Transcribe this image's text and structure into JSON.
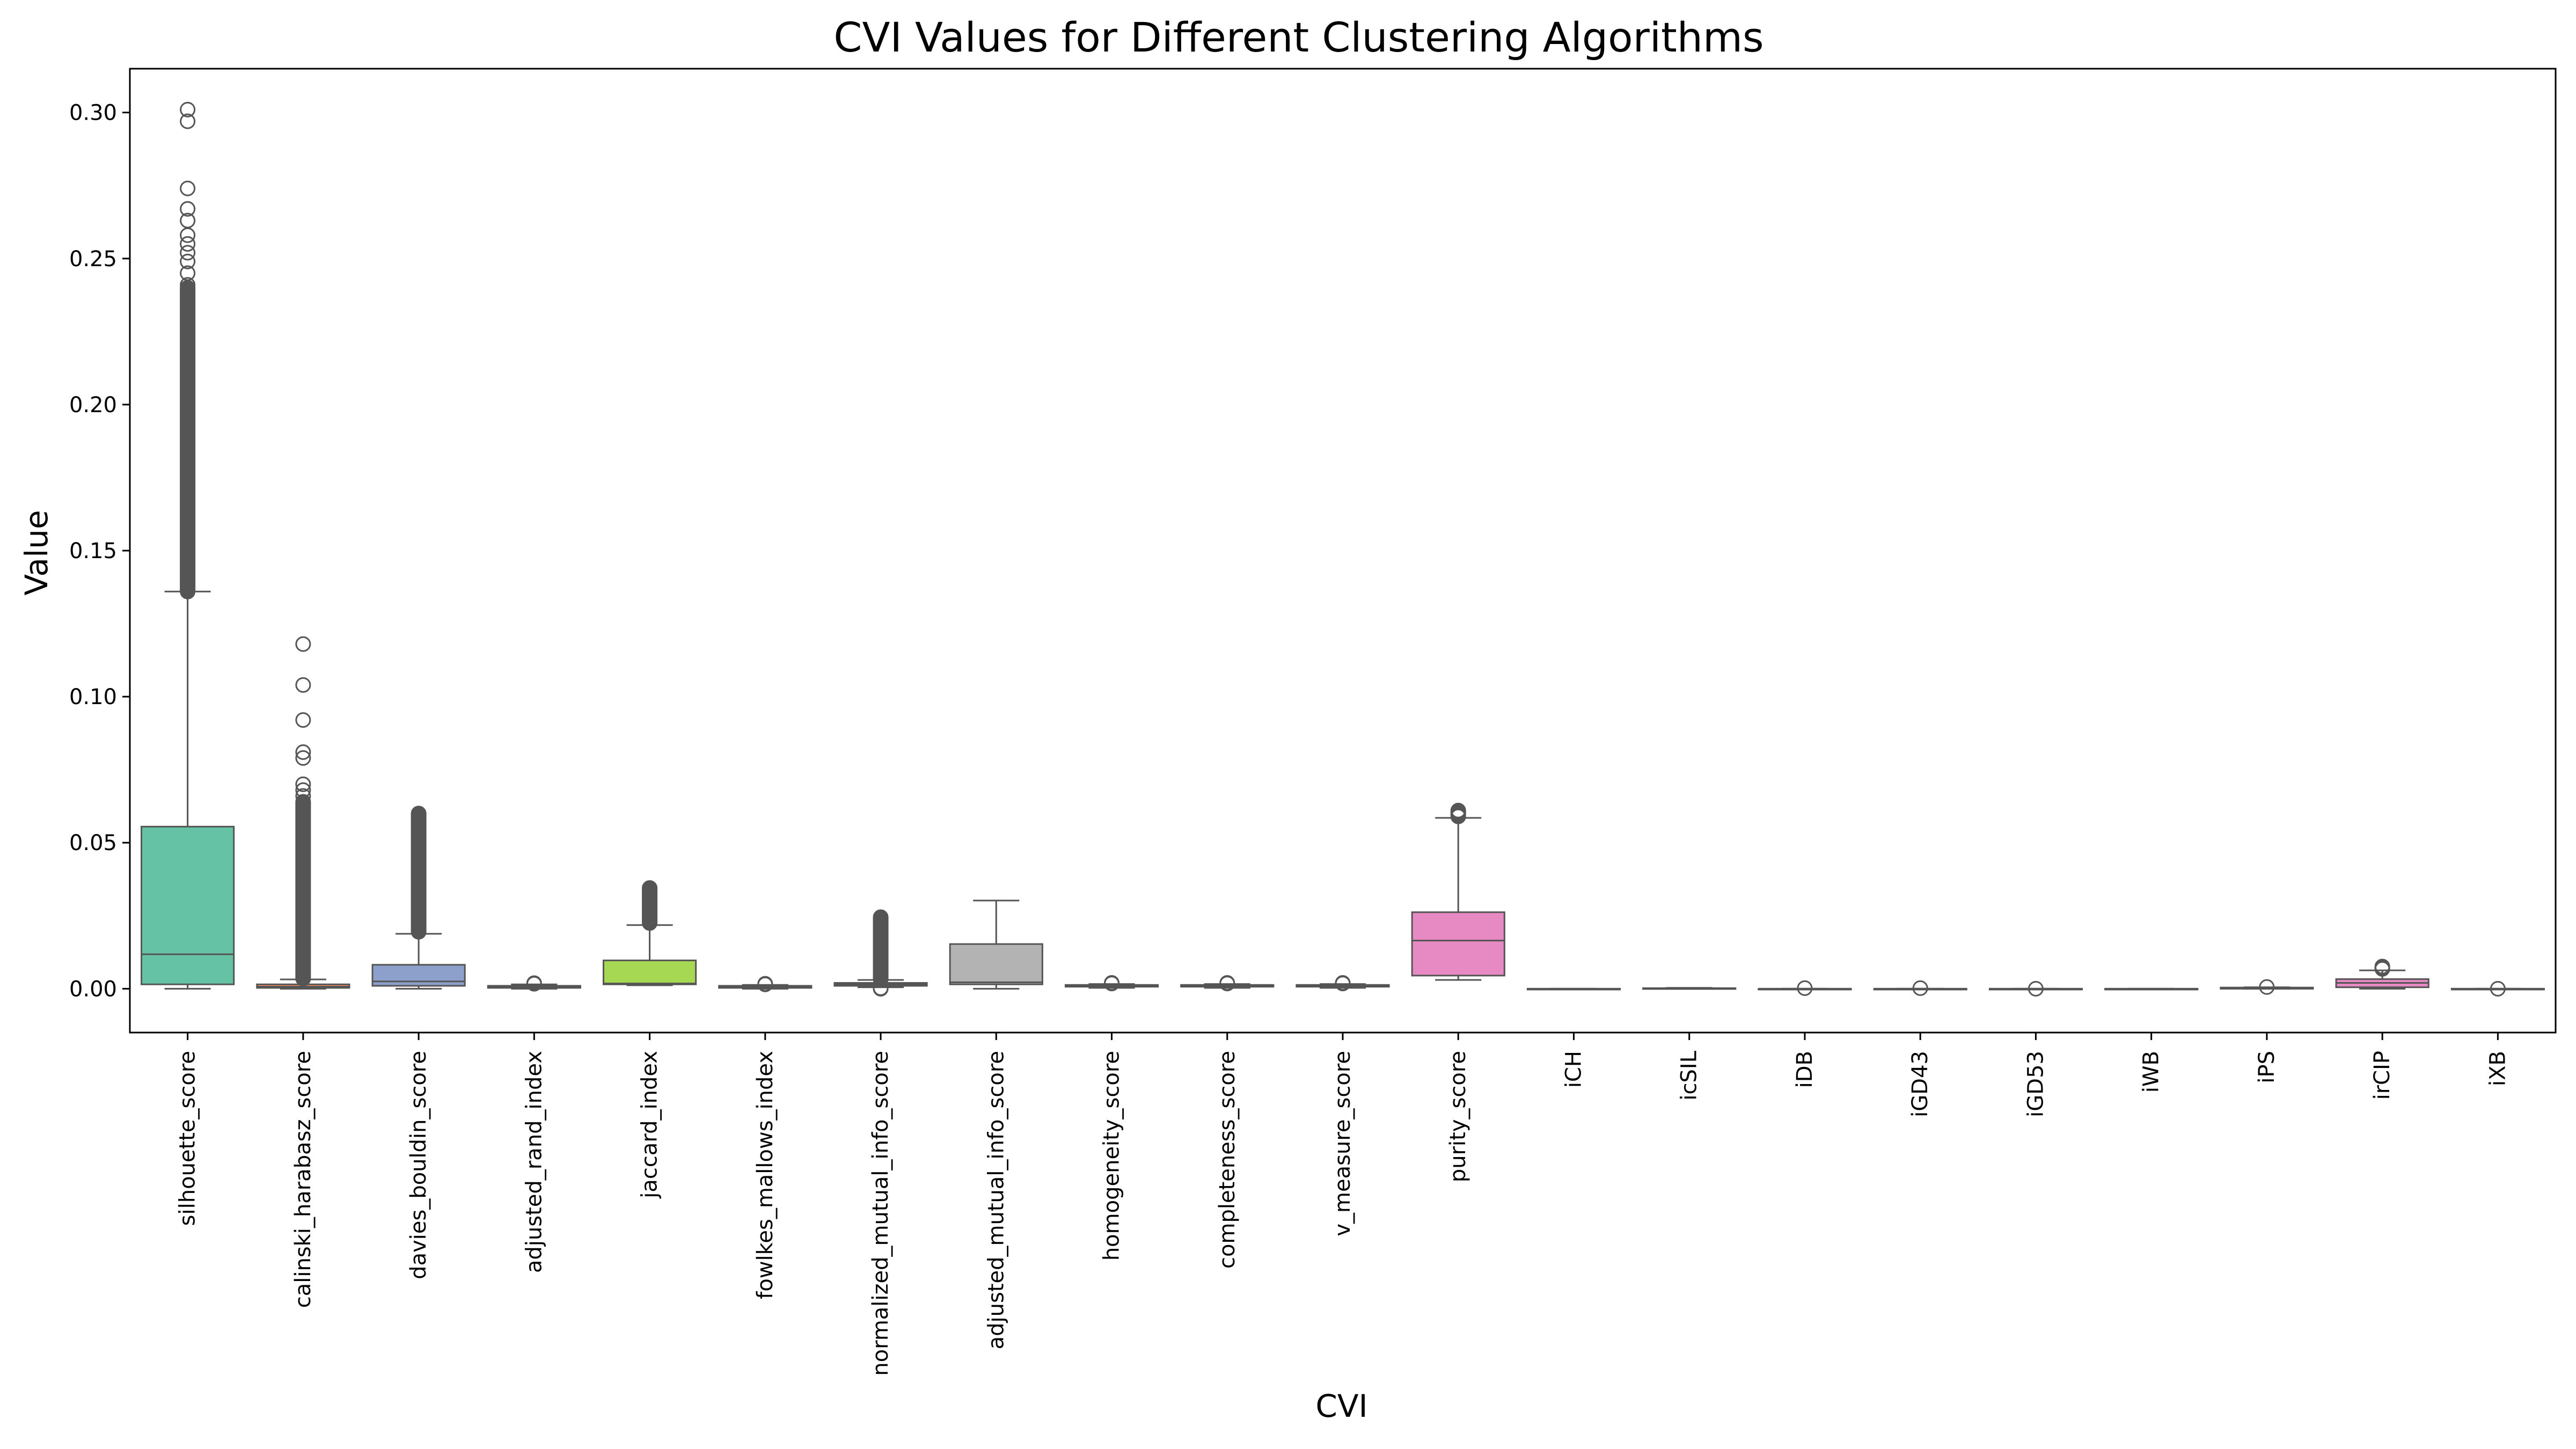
{
  "chart_data": {
    "type": "box",
    "title": "CVI Values for Different Clustering Algorithms",
    "xlabel": "CVI",
    "ylabel": "Value",
    "ylim": [
      -0.015,
      0.315
    ],
    "yticks": [
      0.0,
      0.05,
      0.1,
      0.15,
      0.2,
      0.25,
      0.3
    ],
    "ytick_labels": [
      "0.00",
      "0.05",
      "0.10",
      "0.15",
      "0.20",
      "0.25",
      "0.30"
    ],
    "grid": false,
    "legend": "none",
    "box_stroke": "#555555",
    "categories": [
      "silhouette_score",
      "calinski_harabasz_score",
      "davies_bouldin_score",
      "adjusted_rand_index",
      "jaccard_index",
      "fowlkes_mallows_index",
      "normalized_mutual_info_score",
      "adjusted_mutual_info_score",
      "homogeneity_score",
      "completeness_score",
      "v_measure_score",
      "purity_score",
      "iCH",
      "icSIL",
      "iDB",
      "iGD43",
      "iGD53",
      "iWB",
      "iPS",
      "irCIP",
      "iXB"
    ],
    "boxes": [
      {
        "name": "silhouette_score",
        "color": "#66c2a5",
        "q1": 0.0015,
        "median": 0.0118,
        "q3": 0.0555,
        "whisker_low": 0.0,
        "whisker_high": 0.136,
        "outliers": [
          0.301,
          0.297,
          0.274,
          0.267,
          0.263,
          0.258,
          0.255,
          0.252,
          0.249,
          0.245,
          0.241
        ],
        "outlier_band": [
          0.136,
          0.24
        ]
      },
      {
        "name": "calinski_harabasz_score",
        "color": "#fc8d62",
        "q1": 0.0003,
        "median": 0.0007,
        "q3": 0.0015,
        "whisker_low": 0.0,
        "whisker_high": 0.0032,
        "outliers": [
          0.118,
          0.104,
          0.092,
          0.081,
          0.079,
          0.07,
          0.068,
          0.066
        ],
        "outlier_band": [
          0.0035,
          0.064
        ]
      },
      {
        "name": "davies_bouldin_score",
        "color": "#8da0cb",
        "q1": 0.001,
        "median": 0.0025,
        "q3": 0.0082,
        "whisker_low": 0.0,
        "whisker_high": 0.0188,
        "outliers": [],
        "outlier_band": [
          0.0195,
          0.06
        ]
      },
      {
        "name": "adjusted_rand_index",
        "color": "#e78ac3",
        "q1": 0.0003,
        "median": 0.0006,
        "q3": 0.001,
        "whisker_low": 0.0,
        "whisker_high": 0.0015,
        "outliers": [
          0.0017,
          0.0019
        ],
        "outlier_band": null
      },
      {
        "name": "jaccard_index",
        "color": "#a6d854",
        "q1": 0.0015,
        "median": 0.0018,
        "q3": 0.0097,
        "whisker_low": 0.0012,
        "whisker_high": 0.0218,
        "outliers": [],
        "outlier_band": [
          0.0225,
          0.0345
        ]
      },
      {
        "name": "fowlkes_mallows_index",
        "color": "#ffd92f",
        "q1": 0.0003,
        "median": 0.0006,
        "q3": 0.001,
        "whisker_low": 0.0,
        "whisker_high": 0.0013,
        "outliers": [
          0.0015,
          0.0017
        ],
        "outlier_band": null
      },
      {
        "name": "normalized_mutual_info_score",
        "color": "#e5c494",
        "q1": 0.001,
        "median": 0.0015,
        "q3": 0.002,
        "whisker_low": 0.0005,
        "whisker_high": 0.003,
        "outliers": [
          0.0,
          0.0002
        ],
        "outlier_band": [
          0.0033,
          0.0245
        ]
      },
      {
        "name": "adjusted_mutual_info_score",
        "color": "#b3b3b3",
        "q1": 0.0015,
        "median": 0.0022,
        "q3": 0.0153,
        "whisker_low": 0.0,
        "whisker_high": 0.0302,
        "outliers": [],
        "outlier_band": null
      },
      {
        "name": "homogeneity_score",
        "color": "#66c2a5",
        "q1": 0.0007,
        "median": 0.001,
        "q3": 0.0013,
        "whisker_low": 0.0003,
        "whisker_high": 0.0016,
        "outliers": [
          0.0018,
          0.002
        ],
        "outlier_band": null
      },
      {
        "name": "completeness_score",
        "color": "#fc8d62",
        "q1": 0.0007,
        "median": 0.001,
        "q3": 0.0013,
        "whisker_low": 0.0003,
        "whisker_high": 0.0016,
        "outliers": [
          0.0018,
          0.002
        ],
        "outlier_band": null
      },
      {
        "name": "v_measure_score",
        "color": "#8da0cb",
        "q1": 0.0007,
        "median": 0.001,
        "q3": 0.0013,
        "whisker_low": 0.0003,
        "whisker_high": 0.0016,
        "outliers": [
          0.0018,
          0.002
        ],
        "outlier_band": null
      },
      {
        "name": "purity_score",
        "color": "#e78ac3",
        "q1": 0.0045,
        "median": 0.0165,
        "q3": 0.0262,
        "whisker_low": 0.003,
        "whisker_high": 0.0585,
        "outliers": [
          0.059,
          0.0595,
          0.06,
          0.0605,
          0.061
        ],
        "outlier_band": null
      },
      {
        "name": "iCH",
        "color": "#a6d854",
        "q1": 0.0,
        "median": 0.0,
        "q3": 0.0,
        "whisker_low": 0.0,
        "whisker_high": 0.0,
        "outliers": [],
        "outlier_band": null
      },
      {
        "name": "icSIL",
        "color": "#ffd92f",
        "q1": 0.0,
        "median": 0.0001,
        "q3": 0.0002,
        "whisker_low": 0.0,
        "whisker_high": 0.0003,
        "outliers": [],
        "outlier_band": null
      },
      {
        "name": "iDB",
        "color": "#e5c494",
        "q1": 0.0,
        "median": 0.0,
        "q3": 0.0,
        "whisker_low": 0.0,
        "whisker_high": 0.0,
        "outliers": [
          0.0002
        ],
        "outlier_band": null
      },
      {
        "name": "iGD43",
        "color": "#b3b3b3",
        "q1": 0.0,
        "median": 0.0,
        "q3": 0.0,
        "whisker_low": 0.0,
        "whisker_high": 0.0,
        "outliers": [
          0.0002
        ],
        "outlier_band": null
      },
      {
        "name": "iGD53",
        "color": "#66c2a5",
        "q1": 0.0,
        "median": 0.0,
        "q3": 0.0,
        "whisker_low": 0.0,
        "whisker_high": 0.0,
        "outliers": [
          0.0
        ],
        "outlier_band": null
      },
      {
        "name": "iWB",
        "color": "#fc8d62",
        "q1": 0.0,
        "median": 0.0,
        "q3": 0.0,
        "whisker_low": 0.0,
        "whisker_high": 0.0,
        "outliers": [],
        "outlier_band": null
      },
      {
        "name": "iPS",
        "color": "#8da0cb",
        "q1": 0.0,
        "median": 0.0002,
        "q3": 0.0004,
        "whisker_low": 0.0,
        "whisker_high": 0.0005,
        "outliers": [
          0.0006
        ],
        "outlier_band": null
      },
      {
        "name": "irCIP",
        "color": "#e78ac3",
        "q1": 0.0005,
        "median": 0.002,
        "q3": 0.0033,
        "whisker_low": 0.0,
        "whisker_high": 0.0063,
        "outliers": [
          0.0068,
          0.0072,
          0.0076
        ],
        "outlier_band": null
      },
      {
        "name": "iXB",
        "color": "#a6d854",
        "q1": 0.0,
        "median": 0.0,
        "q3": 0.0,
        "whisker_low": 0.0,
        "whisker_high": 0.0,
        "outliers": [
          0.0
        ],
        "outlier_band": null
      }
    ]
  }
}
